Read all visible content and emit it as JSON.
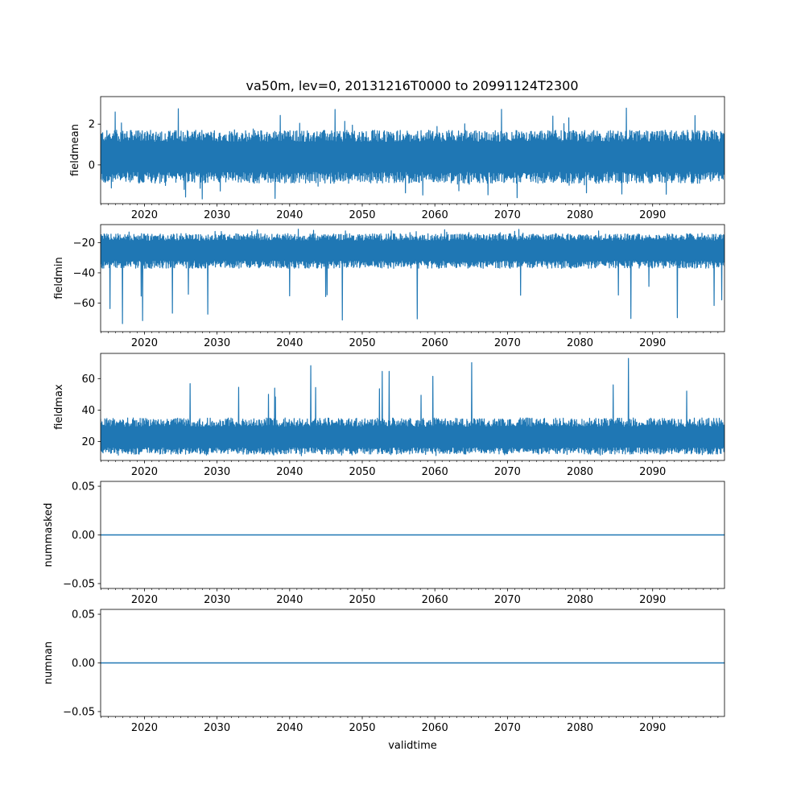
{
  "title": "va50m, lev=0, 20131216T0000 to 20991124T2300",
  "colors": {
    "series": "#1f77b4",
    "axes": "#000000",
    "background": "#ffffff"
  },
  "chart_data": [
    {
      "type": "line",
      "ylabel": "fieldmean",
      "xlim": [
        2013.96,
        2099.9
      ],
      "ylim": [
        -1.9,
        3.35
      ],
      "yticks": [
        {
          "v": 0,
          "label": "0"
        },
        {
          "v": 2,
          "label": "2"
        }
      ],
      "xticks": [
        {
          "v": 2020,
          "label": "2020"
        },
        {
          "v": 2030,
          "label": "2030"
        },
        {
          "v": 2040,
          "label": "2040"
        },
        {
          "v": 2050,
          "label": "2050"
        },
        {
          "v": 2060,
          "label": "2060"
        },
        {
          "v": 2070,
          "label": "2070"
        },
        {
          "v": 2080,
          "label": "2080"
        },
        {
          "v": 2090,
          "label": "2090"
        }
      ],
      "series": [
        {
          "style": "dense-oscillation",
          "x_start": 2013.96,
          "x_end": 2099.9,
          "band_low": -0.9,
          "band_high": 1.7,
          "baseline": 0.4,
          "approx_min": -1.7,
          "approx_max": 3.1
        }
      ]
    },
    {
      "type": "line",
      "ylabel": "fieldmin",
      "xlim": [
        2013.96,
        2099.9
      ],
      "ylim": [
        -79,
        -8
      ],
      "yticks": [
        {
          "v": -60,
          "label": "−60"
        },
        {
          "v": -40,
          "label": "−40"
        },
        {
          "v": -20,
          "label": "−20"
        }
      ],
      "xticks": [
        {
          "v": 2020,
          "label": "2020"
        },
        {
          "v": 2030,
          "label": "2030"
        },
        {
          "v": 2040,
          "label": "2040"
        },
        {
          "v": 2050,
          "label": "2050"
        },
        {
          "v": 2060,
          "label": "2060"
        },
        {
          "v": 2070,
          "label": "2070"
        },
        {
          "v": 2080,
          "label": "2080"
        },
        {
          "v": 2090,
          "label": "2090"
        }
      ],
      "series": [
        {
          "style": "dense-oscillation",
          "x_start": 2013.96,
          "x_end": 2099.9,
          "band_low": -37,
          "band_high": -14,
          "baseline": -25,
          "approx_min": -75,
          "approx_max": -11
        }
      ]
    },
    {
      "type": "line",
      "ylabel": "fieldmax",
      "xlim": [
        2013.96,
        2099.9
      ],
      "ylim": [
        8,
        76
      ],
      "yticks": [
        {
          "v": 20,
          "label": "20"
        },
        {
          "v": 40,
          "label": "40"
        },
        {
          "v": 60,
          "label": "60"
        }
      ],
      "xticks": [
        {
          "v": 2020,
          "label": "2020"
        },
        {
          "v": 2030,
          "label": "2030"
        },
        {
          "v": 2040,
          "label": "2040"
        },
        {
          "v": 2050,
          "label": "2050"
        },
        {
          "v": 2060,
          "label": "2060"
        },
        {
          "v": 2070,
          "label": "2070"
        },
        {
          "v": 2080,
          "label": "2080"
        },
        {
          "v": 2090,
          "label": "2090"
        }
      ],
      "series": [
        {
          "style": "dense-oscillation",
          "x_start": 2013.96,
          "x_end": 2099.9,
          "band_low": 12,
          "band_high": 35,
          "baseline": 22,
          "approx_min": 11,
          "approx_max": 73
        }
      ]
    },
    {
      "type": "line",
      "ylabel": "nummasked",
      "xlim": [
        2013.96,
        2099.9
      ],
      "ylim": [
        -0.055,
        0.055
      ],
      "yticks": [
        {
          "v": -0.05,
          "label": "−0.05"
        },
        {
          "v": 0,
          "label": "0.00"
        },
        {
          "v": 0.05,
          "label": "0.05"
        }
      ],
      "xticks": [
        {
          "v": 2020,
          "label": "2020"
        },
        {
          "v": 2030,
          "label": "2030"
        },
        {
          "v": 2040,
          "label": "2040"
        },
        {
          "v": 2050,
          "label": "2050"
        },
        {
          "v": 2060,
          "label": "2060"
        },
        {
          "v": 2070,
          "label": "2070"
        },
        {
          "v": 2080,
          "label": "2080"
        },
        {
          "v": 2090,
          "label": "2090"
        }
      ],
      "series": [
        {
          "style": "constant",
          "x": [
            2013.96,
            2099.9
          ],
          "y": [
            0,
            0
          ]
        }
      ]
    },
    {
      "type": "line",
      "ylabel": "numnan",
      "xlabel": "validtime",
      "xlim": [
        2013.96,
        2099.9
      ],
      "ylim": [
        -0.055,
        0.055
      ],
      "yticks": [
        {
          "v": -0.05,
          "label": "−0.05"
        },
        {
          "v": 0,
          "label": "0.00"
        },
        {
          "v": 0.05,
          "label": "0.05"
        }
      ],
      "xticks": [
        {
          "v": 2020,
          "label": "2020"
        },
        {
          "v": 2030,
          "label": "2030"
        },
        {
          "v": 2040,
          "label": "2040"
        },
        {
          "v": 2050,
          "label": "2050"
        },
        {
          "v": 2060,
          "label": "2060"
        },
        {
          "v": 2070,
          "label": "2070"
        },
        {
          "v": 2080,
          "label": "2080"
        },
        {
          "v": 2090,
          "label": "2090"
        }
      ],
      "series": [
        {
          "style": "constant",
          "x": [
            2013.96,
            2099.9
          ],
          "y": [
            0,
            0
          ]
        }
      ]
    }
  ]
}
